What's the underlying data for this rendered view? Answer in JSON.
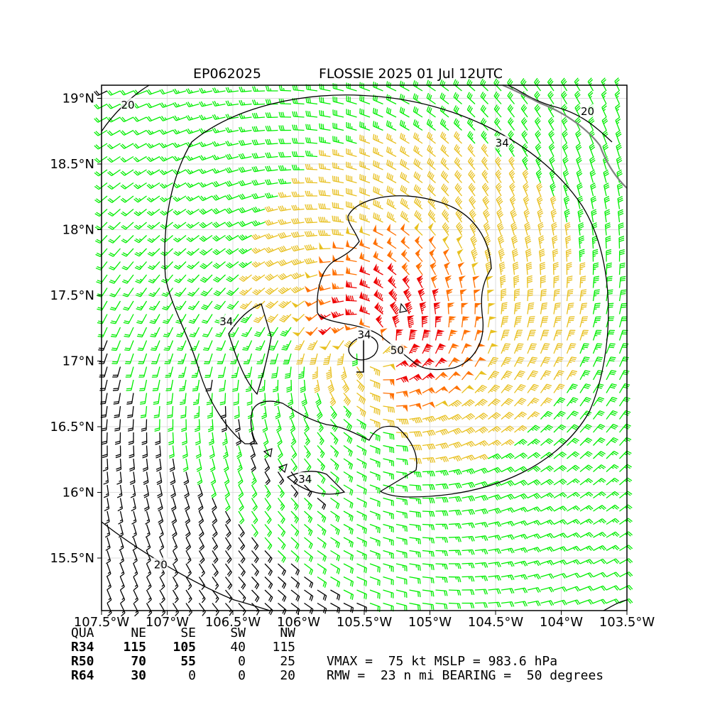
{
  "header": {
    "storm_id": "EP062025",
    "title": "FLOSSIE 2025 01 Jul 12UTC"
  },
  "map": {
    "lon_range": [
      -107.5,
      -103.5
    ],
    "lat_range": [
      15.1,
      19.1
    ],
    "x_ticks": [
      {
        "lon": -107.5,
        "label": "107.5°W"
      },
      {
        "lon": -107.0,
        "label": "107°W"
      },
      {
        "lon": -106.5,
        "label": "106.5°W"
      },
      {
        "lon": -106.0,
        "label": "106°W"
      },
      {
        "lon": -105.5,
        "label": "105.5°W"
      },
      {
        "lon": -105.0,
        "label": "105°W"
      },
      {
        "lon": -104.5,
        "label": "104.5°W"
      },
      {
        "lon": -104.0,
        "label": "104°W"
      },
      {
        "lon": -103.5,
        "label": "103.5°W"
      }
    ],
    "y_ticks": [
      {
        "lat": 15.5,
        "label": "15.5°N"
      },
      {
        "lat": 16.0,
        "label": "16°N"
      },
      {
        "lat": 16.5,
        "label": "16.5°N"
      },
      {
        "lat": 17.0,
        "label": "17°N"
      },
      {
        "lat": 17.5,
        "label": "17.5°N"
      },
      {
        "lat": 18.0,
        "label": "18°N"
      },
      {
        "lat": 18.5,
        "label": "18.5°N"
      },
      {
        "lat": 19.0,
        "label": "19°N"
      }
    ],
    "grid": true,
    "storm_center": {
      "lon": -105.45,
      "lat": 17.1
    },
    "contour_labels": [
      {
        "text": "20",
        "lon": -107.3,
        "lat": 18.95
      },
      {
        "text": "20",
        "lon": -103.8,
        "lat": 18.9
      },
      {
        "text": "20",
        "lon": -107.05,
        "lat": 15.45
      },
      {
        "text": "34",
        "lon": -104.45,
        "lat": 18.66
      },
      {
        "text": "34",
        "lon": -106.55,
        "lat": 17.3
      },
      {
        "text": "34",
        "lon": -105.5,
        "lat": 17.2
      },
      {
        "text": "34",
        "lon": -105.95,
        "lat": 16.1
      },
      {
        "text": "50",
        "lon": -105.25,
        "lat": 17.08
      }
    ],
    "wind_colors": {
      "below_20": "#000000",
      "gale": "#00ee00",
      "34_to_50": "#e8c020",
      "50_to_64": "#ff7000",
      "hurricane": "#ee0000"
    },
    "coastline_color": "#808080"
  },
  "wind_radii_table": {
    "columns": [
      "QUA",
      "NE",
      "SE",
      "SW",
      "NW"
    ],
    "rows": [
      [
        "R34",
        "115",
        "105",
        "40",
        "115"
      ],
      [
        "R50",
        "70",
        "55",
        "0",
        "25"
      ],
      [
        "R64",
        "30",
        "0",
        "0",
        "20"
      ]
    ]
  },
  "stats": {
    "line1": "VMAX =  75 kt MSLP = 983.6 hPa",
    "line2": "RMW =  23 n mi BEARING =  50 degrees"
  }
}
